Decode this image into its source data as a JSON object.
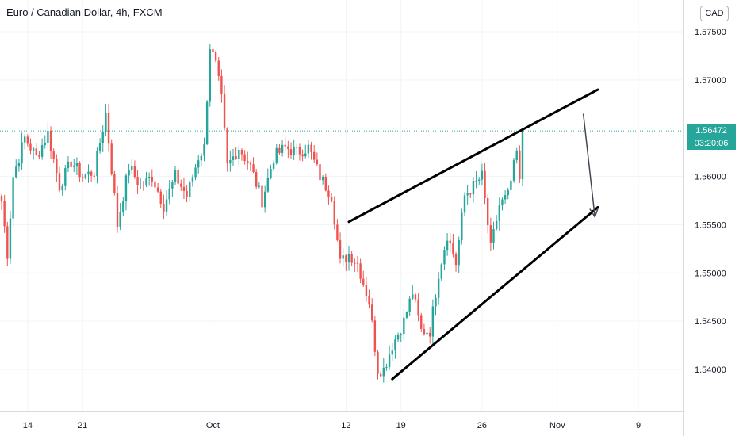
{
  "header": {
    "title": "Euro / Canadian Dollar, 4h, FXCM",
    "currency": "CAD"
  },
  "current": {
    "price_label": "1.56472",
    "countdown_label": "03:20:06",
    "price": 1.56472
  },
  "colors": {
    "up": "#26a69a",
    "down": "#ef5350",
    "grid": "#f0f3fa",
    "axis": "#b2b5be",
    "price_line": "#26a69a",
    "drawing": "#000000",
    "arrow": "#434651"
  },
  "chart_data": {
    "type": "candlestick",
    "symbol": "EURCAD",
    "interval": "4h",
    "source": "FXCM",
    "ylim": [
      1.5355,
      1.5785
    ],
    "yticks": [
      1.54,
      1.545,
      1.55,
      1.555,
      1.56,
      1.565,
      1.57,
      1.575
    ],
    "ytick_labels": [
      "1.54000",
      "1.54500",
      "1.55000",
      "1.55500",
      "1.56000",
      "1.56500",
      "1.57000",
      "1.57500"
    ],
    "xtick_labels": [
      "14",
      "21",
      "Oct",
      "12",
      "19",
      "26",
      "Nov",
      "9"
    ],
    "xticks_index": [
      9,
      28,
      73,
      119,
      138,
      166,
      192,
      220
    ],
    "bar_count": 181,
    "grid": true,
    "anchors": [
      [
        0,
        1.5575
      ],
      [
        2,
        1.552
      ],
      [
        4,
        1.56
      ],
      [
        8,
        1.564
      ],
      [
        12,
        1.562
      ],
      [
        16,
        1.5645
      ],
      [
        20,
        1.559
      ],
      [
        24,
        1.5615
      ],
      [
        28,
        1.56
      ],
      [
        32,
        1.5605
      ],
      [
        36,
        1.5665
      ],
      [
        40,
        1.555
      ],
      [
        44,
        1.561
      ],
      [
        48,
        1.559
      ],
      [
        52,
        1.56
      ],
      [
        56,
        1.557
      ],
      [
        60,
        1.56
      ],
      [
        64,
        1.558
      ],
      [
        68,
        1.562
      ],
      [
        70,
        1.563
      ],
      [
        72,
        1.5735
      ],
      [
        74,
        1.5715
      ],
      [
        76,
        1.568
      ],
      [
        78,
        1.561
      ],
      [
        82,
        1.563
      ],
      [
        86,
        1.561
      ],
      [
        90,
        1.5575
      ],
      [
        94,
        1.562
      ],
      [
        98,
        1.563
      ],
      [
        102,
        1.5625
      ],
      [
        106,
        1.563
      ],
      [
        110,
        1.56
      ],
      [
        114,
        1.558
      ],
      [
        117,
        1.551
      ],
      [
        120,
        1.552
      ],
      [
        123,
        1.551
      ],
      [
        127,
        1.547
      ],
      [
        130,
        1.54
      ],
      [
        132,
        1.54
      ],
      [
        135,
        1.5425
      ],
      [
        139,
        1.545
      ],
      [
        142,
        1.548
      ],
      [
        145,
        1.544
      ],
      [
        148,
        1.544
      ],
      [
        151,
        1.55
      ],
      [
        154,
        1.554
      ],
      [
        157,
        1.551
      ],
      [
        160,
        1.558
      ],
      [
        163,
        1.559
      ],
      [
        166,
        1.56
      ],
      [
        169,
        1.5525
      ],
      [
        172,
        1.557
      ],
      [
        175,
        1.558
      ],
      [
        178,
        1.5625
      ],
      [
        180,
        1.556
      ],
      [
        183,
        1.5545
      ],
      [
        186,
        1.562
      ],
      [
        189,
        1.5535
      ],
      [
        192,
        1.5555
      ],
      [
        195,
        1.5615
      ],
      [
        197,
        1.564
      ],
      [
        199,
        1.561
      ],
      [
        201,
        1.5647
      ]
    ],
    "drawings": {
      "upper_trendline": {
        "start": [
          120,
          1.5553
        ],
        "end": [
          206,
          1.569
        ]
      },
      "lower_trendline": {
        "start": [
          135,
          1.539
        ],
        "end": [
          206,
          1.5568
        ]
      },
      "arrow": {
        "start": [
          201,
          1.5665
        ],
        "end": [
          205,
          1.5558
        ]
      }
    }
  }
}
